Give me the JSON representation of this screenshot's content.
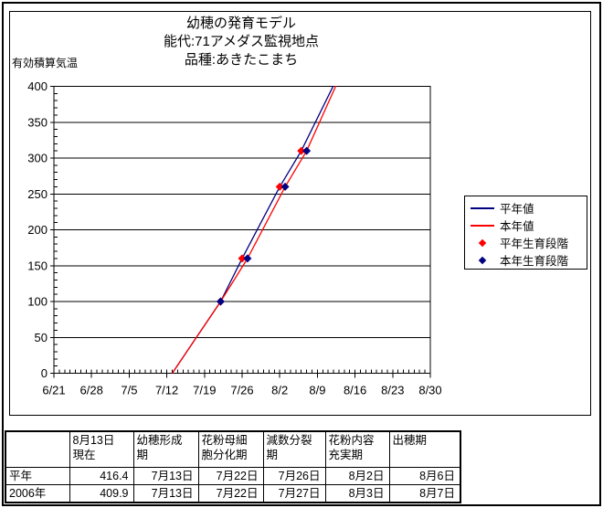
{
  "chart_data": {
    "type": "line",
    "title": "幼穂の発育モデル",
    "location_line": "能代:71アメダス監視地点",
    "variety_line": "品種:あきたこまち",
    "y_axis_title": "有効積算気温",
    "xlabel": "",
    "ylabel": "有効積算気温",
    "x_ticks": [
      "6/21",
      "6/28",
      "7/5",
      "7/12",
      "7/19",
      "7/26",
      "8/2",
      "8/9",
      "8/16",
      "8/23",
      "8/30"
    ],
    "y_ticks": [
      0,
      50,
      100,
      150,
      200,
      250,
      300,
      350,
      400
    ],
    "ylim": [
      0,
      400
    ],
    "y_minor_step": 10,
    "x_minor_step_days": 1,
    "grid": "horizontal-only",
    "legend_position": "right",
    "colors": {
      "normal_year": "#000080",
      "this_year": "#ff0000",
      "axis": "#000000",
      "background": "#ffffff"
    },
    "series": [
      {
        "name": "平年値",
        "type": "line",
        "color": "#000080",
        "points": [
          [
            "7/13",
            0
          ],
          [
            "7/22",
            100
          ],
          [
            "7/26",
            160
          ],
          [
            "8/2",
            260
          ],
          [
            "8/6",
            310
          ],
          [
            "8/13",
            416.4
          ]
        ]
      },
      {
        "name": "本年値",
        "type": "line",
        "color": "#ff0000",
        "points": [
          [
            "7/13",
            0
          ],
          [
            "7/22",
            100
          ],
          [
            "7/27",
            160
          ],
          [
            "8/3",
            260
          ],
          [
            "8/7",
            310
          ],
          [
            "8/13",
            409.9
          ]
        ]
      },
      {
        "name": "平年生育段階",
        "type": "scatter",
        "marker": "diamond",
        "color": "#ff0000",
        "points": [
          [
            "7/22",
            100
          ],
          [
            "7/26",
            160
          ],
          [
            "8/2",
            260
          ],
          [
            "8/6",
            310
          ]
        ]
      },
      {
        "name": "本年生育段階",
        "type": "scatter",
        "marker": "diamond",
        "color": "#000080",
        "points": [
          [
            "7/22",
            100
          ],
          [
            "7/27",
            160
          ],
          [
            "8/3",
            260
          ],
          [
            "8/7",
            310
          ]
        ]
      }
    ]
  },
  "table": {
    "headers": [
      "",
      "8月13日\n現在",
      "幼穂形成\n期",
      "花粉母細\n胞分化期",
      "減数分裂\n期",
      "花粉内容\n充実期",
      "出穂期"
    ],
    "rows": [
      {
        "label": "平年",
        "cells": [
          "416.4",
          "7月13日",
          "7月22日",
          "7月26日",
          "8月2日",
          "8月6日"
        ]
      },
      {
        "label": "2006年",
        "cells": [
          "409.9",
          "7月13日",
          "7月22日",
          "7月27日",
          "8月3日",
          "8月7日"
        ]
      }
    ]
  }
}
